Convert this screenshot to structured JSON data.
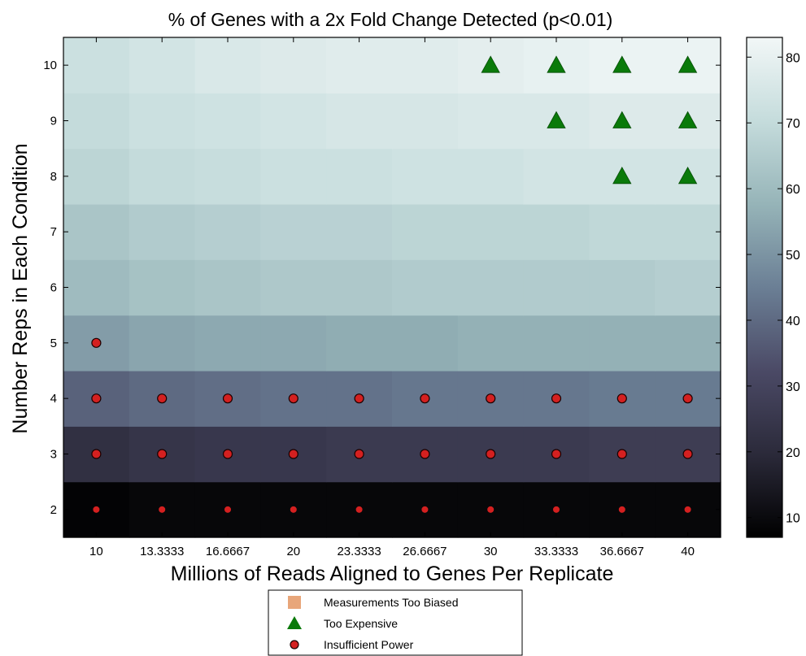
{
  "chart_data": {
    "type": "heatmap",
    "title": "% of Genes with a 2x Fold Change Detected (p<0.01)",
    "xlabel": "Millions of Reads Aligned to Genes Per Replicate",
    "ylabel": "Number Reps in Each Condition",
    "x": [
      10,
      13.3333,
      16.6667,
      20,
      23.3333,
      26.6667,
      30,
      33.3333,
      36.6667,
      40
    ],
    "x_tick_labels": [
      "10",
      "13.3333",
      "16.6667",
      "20",
      "23.3333",
      "26.6667",
      "30",
      "33.3333",
      "36.6667",
      "40"
    ],
    "y": [
      2,
      3,
      4,
      5,
      6,
      7,
      8,
      9,
      10
    ],
    "y_tick_labels": [
      "2",
      "3",
      "4",
      "5",
      "6",
      "7",
      "8",
      "9",
      "10"
    ],
    "z": [
      [
        8,
        9,
        9,
        9,
        9,
        9,
        9,
        9,
        9,
        9
      ],
      [
        22,
        24,
        25,
        25,
        26,
        26,
        26,
        26,
        27,
        27
      ],
      [
        38,
        40,
        41,
        42,
        42,
        43,
        43,
        43,
        44,
        44
      ],
      [
        52,
        54,
        55,
        55,
        56,
        56,
        57,
        57,
        57,
        57
      ],
      [
        60,
        62,
        63,
        64,
        64,
        65,
        65,
        65,
        65,
        66
      ],
      [
        63,
        65,
        66,
        67,
        67,
        68,
        68,
        68,
        69,
        69
      ],
      [
        68,
        70,
        71,
        72,
        72,
        73,
        73,
        74,
        74,
        74
      ],
      [
        70,
        72,
        73,
        74,
        75,
        75,
        76,
        76,
        77,
        77
      ],
      [
        72,
        74,
        76,
        77,
        78,
        78,
        79,
        80,
        81,
        81
      ]
    ],
    "colorbar": {
      "range": [
        7,
        83
      ],
      "ticks": [
        10,
        20,
        30,
        40,
        50,
        60,
        70,
        80
      ],
      "tick_labels": [
        "10",
        "20",
        "30",
        "40",
        "50",
        "60",
        "70",
        "80"
      ],
      "colors": [
        "#000000",
        "#2b2a3a",
        "#4b4a66",
        "#6b7f95",
        "#96b4b8",
        "#c5dcdc",
        "#f2f7f7"
      ]
    },
    "markers": {
      "too_expensive": [
        [
          30,
          10
        ],
        [
          33.3333,
          10
        ],
        [
          36.6667,
          10
        ],
        [
          40,
          10
        ],
        [
          33.3333,
          9
        ],
        [
          36.6667,
          9
        ],
        [
          40,
          9
        ],
        [
          36.6667,
          8
        ],
        [
          40,
          8
        ]
      ],
      "insufficient_power": [
        [
          10,
          5
        ],
        [
          10,
          4
        ],
        [
          13.3333,
          4
        ],
        [
          16.6667,
          4
        ],
        [
          20,
          4
        ],
        [
          23.3333,
          4
        ],
        [
          26.6667,
          4
        ],
        [
          30,
          4
        ],
        [
          33.3333,
          4
        ],
        [
          36.6667,
          4
        ],
        [
          40,
          4
        ],
        [
          10,
          3
        ],
        [
          13.3333,
          3
        ],
        [
          16.6667,
          3
        ],
        [
          20,
          3
        ],
        [
          23.3333,
          3
        ],
        [
          26.6667,
          3
        ],
        [
          30,
          3
        ],
        [
          33.3333,
          3
        ],
        [
          36.6667,
          3
        ],
        [
          40,
          3
        ],
        [
          10,
          2
        ],
        [
          13.3333,
          2
        ],
        [
          16.6667,
          2
        ],
        [
          20,
          2
        ],
        [
          23.3333,
          2
        ],
        [
          26.6667,
          2
        ],
        [
          30,
          2
        ],
        [
          33.3333,
          2
        ],
        [
          36.6667,
          2
        ],
        [
          40,
          2
        ]
      ]
    },
    "legend": {
      "placement": "bottom-center",
      "entries": [
        {
          "key": "biased",
          "label": "Measurements Too Biased",
          "marker": "square",
          "color": "#e8a67a"
        },
        {
          "key": "expensive",
          "label": "Too Expensive",
          "marker": "triangle",
          "color": "#0a7a0a"
        },
        {
          "key": "power",
          "label": "Insufficient Power",
          "marker": "circle",
          "color": "#d42020"
        }
      ]
    }
  }
}
